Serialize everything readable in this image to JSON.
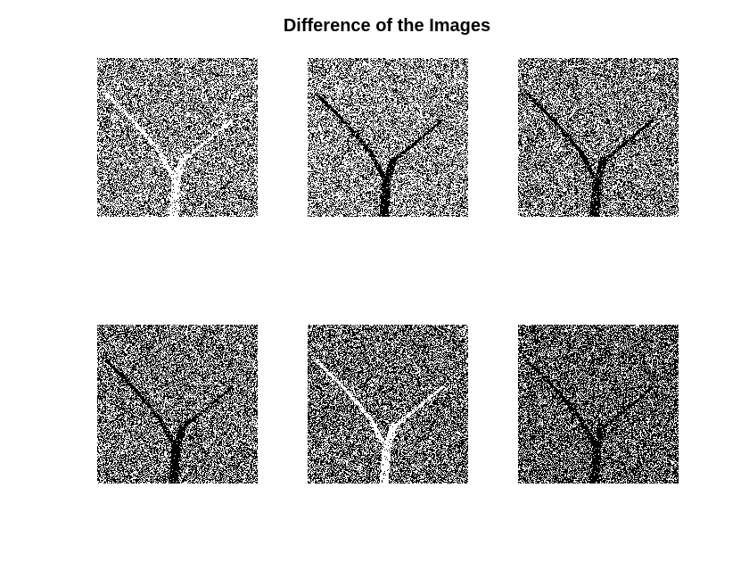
{
  "figure": {
    "title": "Difference of the Images"
  },
  "panels": [
    {
      "name": "panel-1",
      "density": 0.55,
      "river": "white"
    },
    {
      "name": "panel-2",
      "density": 0.58,
      "river": "black"
    },
    {
      "name": "panel-3",
      "density": 0.5,
      "river": "black"
    },
    {
      "name": "panel-4",
      "density": 0.45,
      "river": "black"
    },
    {
      "name": "panel-5",
      "density": 0.42,
      "river": "white"
    },
    {
      "name": "panel-6",
      "density": 0.35,
      "river": "black"
    }
  ],
  "colors": {
    "background": "#ffffff",
    "pixel_on": "#ffffff",
    "pixel_off": "#000000"
  }
}
